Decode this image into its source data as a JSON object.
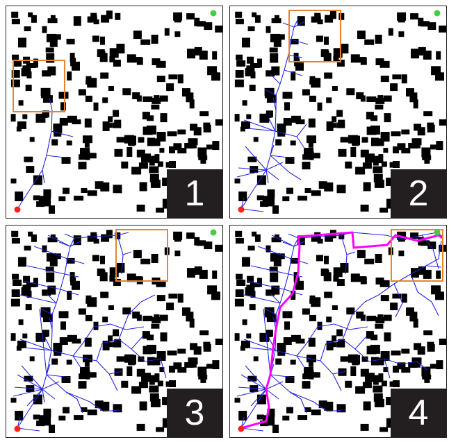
{
  "panels": [
    {
      "label": "1"
    },
    {
      "label": "2"
    },
    {
      "label": "3"
    },
    {
      "label": "4"
    }
  ],
  "colors": {
    "obstacle": "#000000",
    "tree_edge": "#2323e0",
    "final_path": "#ff00ff",
    "focus_box": "#e8832a",
    "start": "#ff2020",
    "goal": "#40d040",
    "badge_bg": "#231f20"
  }
}
